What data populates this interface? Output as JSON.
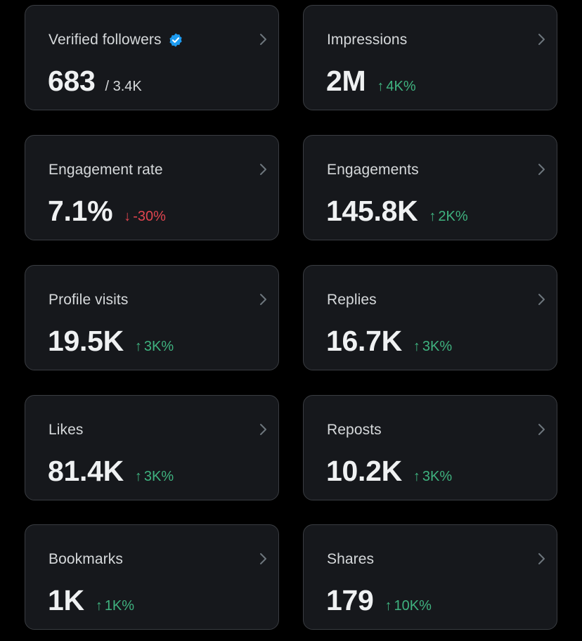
{
  "colors": {
    "background": "#000000",
    "card_background": "#16181c",
    "card_border": "#3a3d42",
    "positive": "#3fb27f",
    "negative": "#e0454f",
    "verified": "#1d9bf0"
  },
  "metrics": [
    {
      "label": "Verified followers",
      "value": "683",
      "total": "/ 3.4K",
      "icon": "verified-badge-icon"
    },
    {
      "label": "Impressions",
      "value": "2M",
      "arrow": "↑",
      "change": "4K%",
      "direction": "up"
    },
    {
      "label": "Engagement rate",
      "value": "7.1%",
      "arrow": "↓",
      "change": "-30%",
      "direction": "down"
    },
    {
      "label": "Engagements",
      "value": "145.8K",
      "arrow": "↑",
      "change": "2K%",
      "direction": "up"
    },
    {
      "label": "Profile visits",
      "value": "19.5K",
      "arrow": "↑",
      "change": "3K%",
      "direction": "up"
    },
    {
      "label": "Replies",
      "value": "16.7K",
      "arrow": "↑",
      "change": "3K%",
      "direction": "up"
    },
    {
      "label": "Likes",
      "value": "81.4K",
      "arrow": "↑",
      "change": "3K%",
      "direction": "up"
    },
    {
      "label": "Reposts",
      "value": "10.2K",
      "arrow": "↑",
      "change": "3K%",
      "direction": "up"
    },
    {
      "label": "Bookmarks",
      "value": "1K",
      "arrow": "↑",
      "change": "1K%",
      "direction": "up"
    },
    {
      "label": "Shares",
      "value": "179",
      "arrow": "↑",
      "change": "10K%",
      "direction": "up"
    }
  ]
}
